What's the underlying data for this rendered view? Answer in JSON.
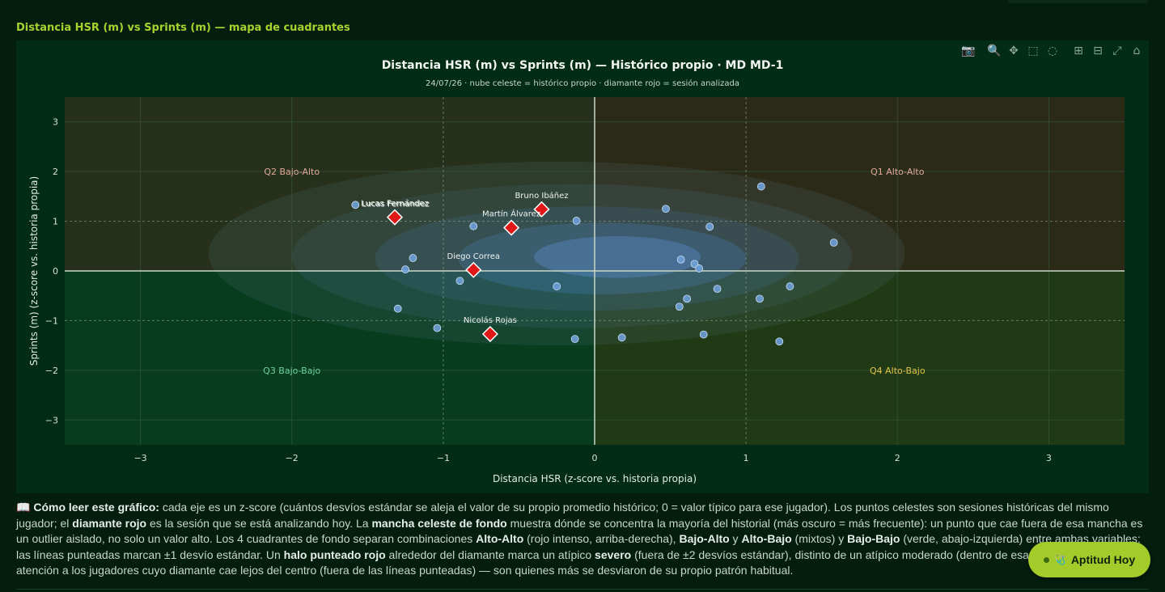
{
  "section_title": "Distancia HSR (m) vs Sprints (m) — mapa de cuadrantes",
  "modebar": [
    {
      "name": "camera-icon",
      "glyph": "📷"
    },
    {
      "name": "zoom-icon",
      "glyph": "🔍"
    },
    {
      "name": "pan-icon",
      "glyph": "✥"
    },
    {
      "name": "box-select-icon",
      "glyph": "⬚"
    },
    {
      "name": "lasso-icon",
      "glyph": "◌"
    },
    {
      "name": "zoom-in-icon",
      "glyph": "⊞"
    },
    {
      "name": "zoom-out-icon",
      "glyph": "⊟"
    },
    {
      "name": "autoscale-icon",
      "glyph": "⤢"
    },
    {
      "name": "reset-axes-icon",
      "glyph": "⌂"
    }
  ],
  "chart_data": {
    "type": "scatter",
    "title": "Distancia HSR (m) vs Sprints (m) — Histórico propio · MD MD-1",
    "subtitle": "24/07/26 · nube celeste = histórico propio · diamante rojo = sesión analizada",
    "xlabel": "Distancia HSR (z-score vs. historia propia)",
    "ylabel": "Sprints (m) (z-score vs. historia propia)",
    "xlim": [
      -3.5,
      3.5
    ],
    "ylim": [
      -3.5,
      3.5
    ],
    "x_ticks": [
      -3,
      -2,
      -1,
      0,
      1,
      2,
      3
    ],
    "y_ticks": [
      3,
      2,
      1,
      0,
      -1,
      -2,
      -3
    ],
    "tick_labels_x": [
      "−3",
      "−2",
      "−1",
      "0",
      "1",
      "2",
      "3"
    ],
    "tick_labels_y": [
      "3",
      "2",
      "1",
      "0",
      "−1",
      "−2",
      "−3"
    ],
    "grid": true,
    "quadrants": [
      {
        "label": "Q1 Alto-Alto",
        "x": 2.0,
        "y": 2.0,
        "color": "#e0a89a"
      },
      {
        "label": "Q2 Bajo-Alto",
        "x": -2.0,
        "y": 2.0,
        "color": "#e0a89a"
      },
      {
        "label": "Q3 Bajo-Bajo",
        "x": -2.0,
        "y": -2.0,
        "color": "#6fd39a"
      },
      {
        "label": "Q4 Alto-Bajo",
        "x": 2.0,
        "y": -2.0,
        "color": "#e6c34a"
      }
    ],
    "historical": {
      "x": [
        -1.58,
        -1.2,
        -1.25,
        -0.8,
        -0.12,
        -1.3,
        -1.04,
        -0.89,
        -0.25,
        -0.13,
        0.47,
        0.76,
        1.1,
        1.58,
        0.57,
        0.66,
        0.69,
        0.61,
        0.56,
        0.81,
        1.09,
        1.29,
        0.72,
        1.22,
        0.18
      ],
      "y": [
        1.33,
        0.26,
        0.03,
        0.9,
        1.01,
        -0.76,
        -1.15,
        -0.2,
        -0.31,
        -1.37,
        1.25,
        0.89,
        1.7,
        0.57,
        0.23,
        0.14,
        0.05,
        -0.56,
        -0.72,
        -0.36,
        -0.56,
        -0.31,
        -1.28,
        -1.42,
        -1.34
      ]
    },
    "session": [
      {
        "name": "Lucas Fernández",
        "x": -1.32,
        "y": 1.08
      },
      {
        "name": "Bruno Ibáñez",
        "x": -0.35,
        "y": 1.24
      },
      {
        "name": "Martín Álvarez",
        "x": -0.55,
        "y": 0.87
      },
      {
        "name": "Diego Correa",
        "x": -0.8,
        "y": 0.02
      },
      {
        "name": "Nicolás Rojas",
        "x": -0.69,
        "y": -1.27
      }
    ],
    "extra_labels": [
      {
        "name": "Lucas Fernández",
        "x": -1.58,
        "y": 1.33
      }
    ],
    "colors": {
      "q1": "#2b2a17",
      "q2": "#26301a",
      "q3": "#073c1f",
      "q4": "#1f3a14",
      "historical_point": "#6ea0d8",
      "session_marker": "#e01818",
      "axis_zero": "#c9d8c8"
    }
  },
  "explanation": {
    "icon": "📖",
    "lead": "Cómo leer este gráfico:",
    "t1": " cada eje es un z-score (cuántos desvíos estándar se aleja el valor de su propio promedio histórico; 0 = valor típico para ese jugador). Los puntos celestes son sesiones históricas del mismo jugador; el ",
    "b1": "diamante rojo",
    "t2": " es la sesión que se está analizando hoy. La ",
    "b2": "mancha celeste de fondo",
    "t3": " muestra dónde se concentra la mayoría del historial (más oscuro = más frecuente): un punto que cae fuera de esa mancha es un outlier aislado, no solo un valor alto. Los 4 cuadrantes de fondo separan combinaciones ",
    "b3": "Alto-Alto",
    "t4": " (rojo intenso, arriba-derecha), ",
    "b4": "Bajo-Alto",
    "t5": " y ",
    "b5": "Alto-Bajo",
    "t6": " (mixtos) y ",
    "b6": "Bajo-Bajo",
    "t7": " (verde, abajo-izquierda) entre ambas variables; las líneas punteadas marcan ±1 desvío estándar. Un ",
    "b7": "halo punteado rojo",
    "t8": " alrededor del diamante marca un atípico ",
    "b8": "severo",
    "t9": " (fuera de ±2 desvíos estándar), distinto de un atípico moderado (dentro de esa banda). Prestá atención a los jugadores cuyo diamante cae lejos del centro (fuera de las líneas punteadas) — son quienes más se desviaron de su propio patrón habitual."
  },
  "aptitud_button": {
    "icon": "🩺",
    "label": "Aptitud Hoy"
  }
}
